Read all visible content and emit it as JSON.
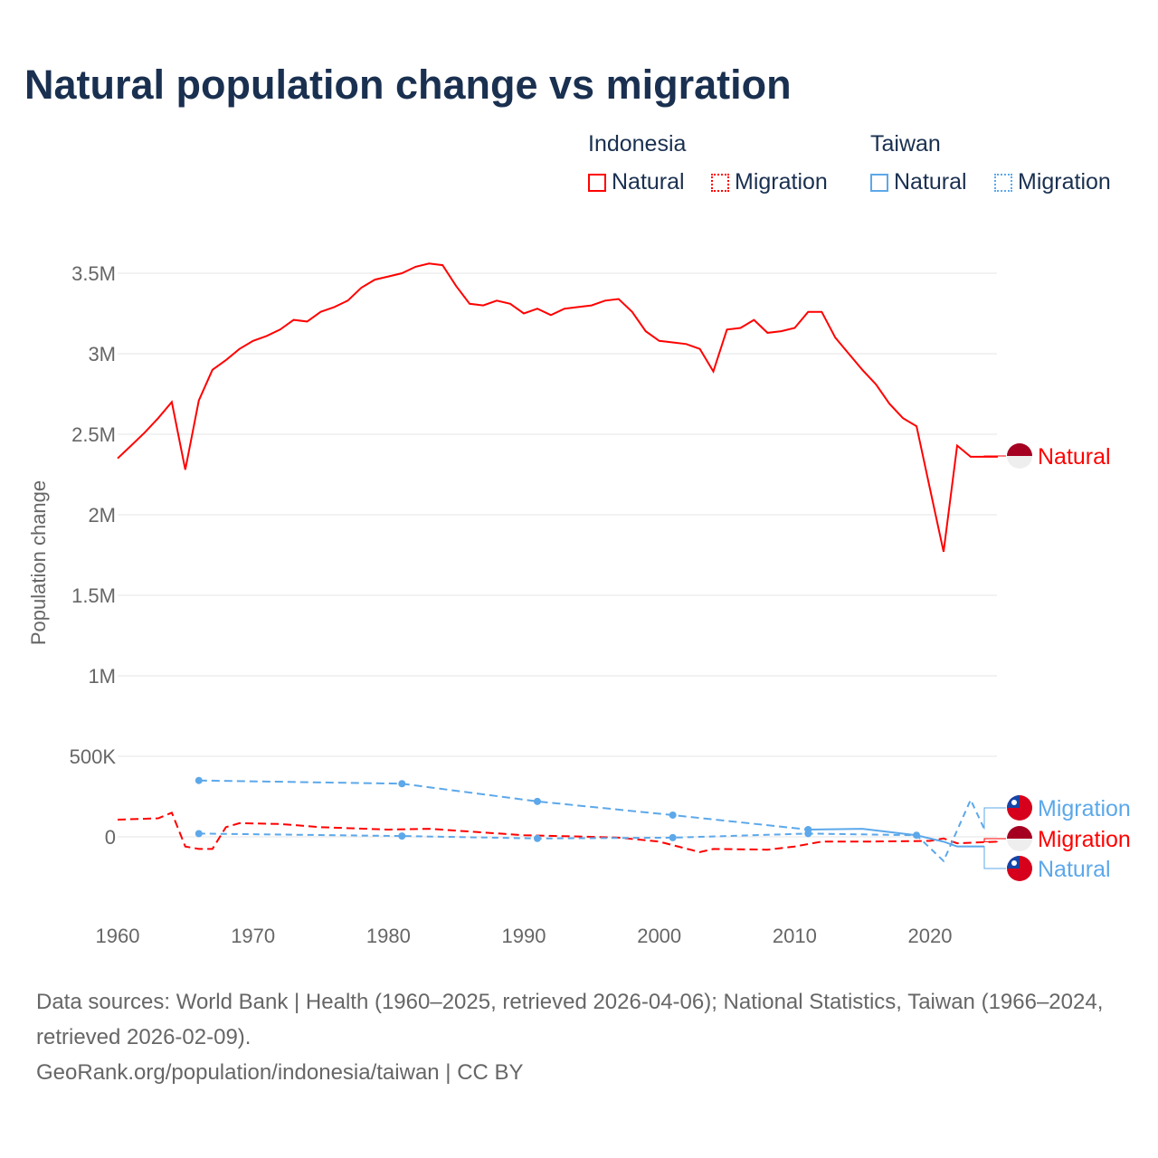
{
  "title": "Natural population change vs migration",
  "legend": {
    "indonesia": "Indonesia",
    "taiwan": "Taiwan",
    "natural": "Natural",
    "migration": "Migration"
  },
  "colors": {
    "indonesia": "#ff0000",
    "taiwan": "#5ca8ea"
  },
  "footer": {
    "line1": "Data sources: World Bank | Health (1960–2025, retrieved 2026-04-06); National Statistics, Taiwan (1966–2024, retrieved 2026-02-09).",
    "line2": "GeoRank.org/population/indonesia/taiwan | CC BY"
  },
  "chart_data": {
    "type": "line",
    "title": "Natural population change vs migration",
    "ylabel": "Population change",
    "xlabel": "",
    "xlim": [
      1960,
      2025
    ],
    "ylim": [
      -500000,
      3700000
    ],
    "xticks": [
      1960,
      1970,
      1980,
      1990,
      2000,
      2010,
      2020
    ],
    "yticks": [
      {
        "v": 0,
        "l": "0"
      },
      {
        "v": 500000,
        "l": "500K"
      },
      {
        "v": 1000000,
        "l": "1M"
      },
      {
        "v": 1500000,
        "l": "1.5M"
      },
      {
        "v": 2000000,
        "l": "2M"
      },
      {
        "v": 2500000,
        "l": "2.5M"
      },
      {
        "v": 3000000,
        "l": "3M"
      },
      {
        "v": 3500000,
        "l": "3.5M"
      }
    ],
    "series": [
      {
        "name": "Indonesia Natural",
        "label": "Natural",
        "country": "indonesia",
        "style": "solid",
        "x": [
          1960,
          1961,
          1962,
          1963,
          1964,
          1965,
          1966,
          1967,
          1968,
          1969,
          1970,
          1971,
          1972,
          1973,
          1974,
          1975,
          1976,
          1977,
          1978,
          1979,
          1980,
          1981,
          1982,
          1983,
          1984,
          1985,
          1986,
          1987,
          1988,
          1989,
          1990,
          1991,
          1992,
          1993,
          1994,
          1995,
          1996,
          1997,
          1998,
          1999,
          2000,
          2001,
          2002,
          2003,
          2004,
          2005,
          2006,
          2007,
          2008,
          2009,
          2010,
          2011,
          2012,
          2013,
          2014,
          2015,
          2016,
          2017,
          2018,
          2019,
          2020,
          2021,
          2022,
          2023,
          2024,
          2025
        ],
        "y": [
          2350000,
          2430000,
          2510000,
          2600000,
          2700000,
          2280000,
          2710000,
          2900000,
          2960000,
          3030000,
          3080000,
          3110000,
          3150000,
          3210000,
          3200000,
          3260000,
          3290000,
          3330000,
          3410000,
          3460000,
          3480000,
          3500000,
          3540000,
          3560000,
          3550000,
          3420000,
          3310000,
          3300000,
          3330000,
          3310000,
          3250000,
          3280000,
          3240000,
          3280000,
          3290000,
          3300000,
          3330000,
          3340000,
          3260000,
          3140000,
          3080000,
          3070000,
          3060000,
          3030000,
          2890000,
          3150000,
          3160000,
          3210000,
          3130000,
          3140000,
          3160000,
          3260000,
          3260000,
          3100000,
          3000000,
          2900000,
          2810000,
          2690000,
          2600000,
          2550000,
          2160000,
          1770000,
          2430000,
          2360000,
          2360000,
          2360000
        ]
      },
      {
        "name": "Indonesia Migration",
        "label": "Migration",
        "country": "indonesia",
        "style": "dashed",
        "x": [
          1960,
          1963,
          1964,
          1965,
          1966,
          1967,
          1968,
          1969,
          1972,
          1975,
          1980,
          1983,
          1990,
          1995,
          1997,
          2000,
          2003,
          2004,
          2008,
          2010,
          2012,
          2015,
          2020,
          2021,
          2022,
          2025
        ],
        "y": [
          107000,
          115000,
          150000,
          -60000,
          -75000,
          -75000,
          60000,
          85000,
          80000,
          60000,
          45000,
          50000,
          10000,
          0,
          -5000,
          -30000,
          -95000,
          -75000,
          -80000,
          -60000,
          -30000,
          -30000,
          -25000,
          -10000,
          -40000,
          -30000
        ]
      },
      {
        "name": "Taiwan Natural",
        "label": "Natural",
        "country": "taiwan",
        "style": "solid",
        "x": [
          1966,
          1981,
          1991,
          2001,
          2011,
          2015,
          2019,
          2021,
          2022,
          2024
        ],
        "y": [
          350000,
          330000,
          220000,
          135000,
          45000,
          50000,
          10000,
          -30000,
          -60000,
          -60000
        ],
        "markers": [
          1966,
          1981,
          1991,
          2001,
          2011
        ]
      },
      {
        "name": "Taiwan Migration",
        "label": "Migration",
        "country": "taiwan",
        "style": "dotted",
        "x": [
          1966,
          1981,
          1991,
          2001,
          2011,
          2019,
          2021,
          2023,
          2024
        ],
        "y": [
          20000,
          5000,
          -10000,
          -5000,
          20000,
          10000,
          -150000,
          230000,
          50000
        ],
        "markers": [
          1966,
          1981,
          1991,
          2001,
          2011,
          2019
        ]
      }
    ]
  }
}
